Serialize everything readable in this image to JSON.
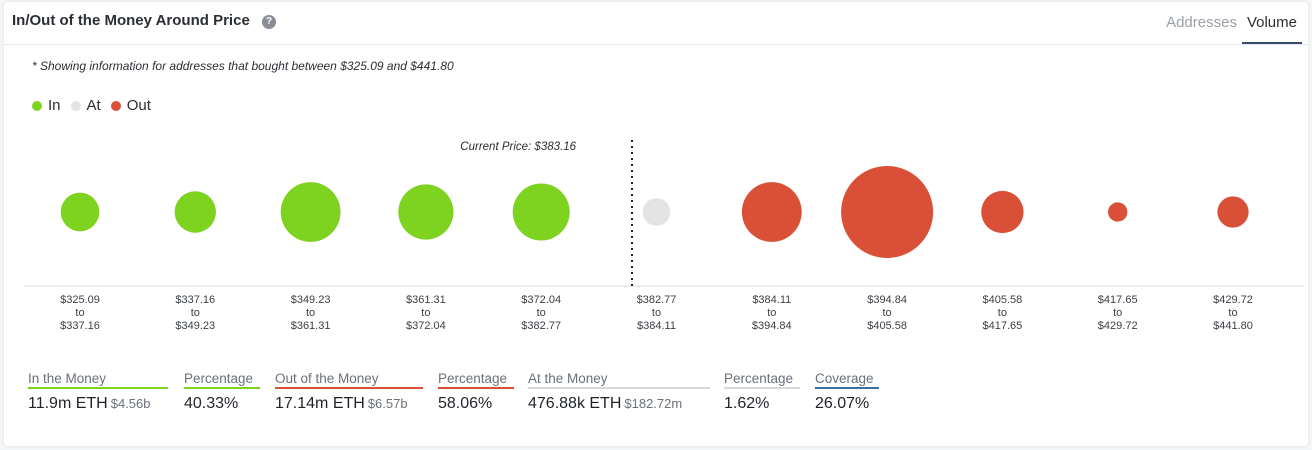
{
  "header": {
    "title": "In/Out of the Money Around Price",
    "help_icon": "question-circle-icon",
    "tabs": [
      {
        "label": "Addresses",
        "active": false
      },
      {
        "label": "Volume",
        "active": true
      }
    ]
  },
  "note": "* Showing information for addresses that bought between $325.09 and $441.80",
  "legend": [
    {
      "label": "In",
      "color": "#7ed321"
    },
    {
      "label": "At",
      "color": "#e3e3e3"
    },
    {
      "label": "Out",
      "color": "#d94f38"
    }
  ],
  "chart_data": {
    "type": "scatter",
    "current_price_label": "Current Price: $383.16",
    "current_price": 383.16,
    "categories": [
      {
        "from": "$325.09",
        "to": "$337.16",
        "status": "in",
        "size": 0.42
      },
      {
        "from": "$337.16",
        "to": "$349.23",
        "status": "in",
        "size": 0.45
      },
      {
        "from": "$349.23",
        "to": "$361.31",
        "status": "in",
        "size": 0.65
      },
      {
        "from": "$361.31",
        "to": "$372.04",
        "status": "in",
        "size": 0.6
      },
      {
        "from": "$372.04",
        "to": "$382.77",
        "status": "in",
        "size": 0.62
      },
      {
        "from": "$382.77",
        "to": "$384.11",
        "status": "at",
        "size": 0.3
      },
      {
        "from": "$384.11",
        "to": "$394.84",
        "status": "out",
        "size": 0.65
      },
      {
        "from": "$394.84",
        "to": "$405.58",
        "status": "out",
        "size": 1.0
      },
      {
        "from": "$405.58",
        "to": "$417.65",
        "status": "out",
        "size": 0.46
      },
      {
        "from": "$417.65",
        "to": "$429.72",
        "status": "out",
        "size": 0.21
      },
      {
        "from": "$429.72",
        "to": "$441.80",
        "status": "out",
        "size": 0.34
      }
    ],
    "to_word": "to",
    "colors": {
      "in": "#7ed321",
      "at": "#e3e3e3",
      "out": "#d94f38"
    }
  },
  "stats": [
    {
      "label": "In the Money",
      "value": "11.9m ETH",
      "sub": "$4.56b",
      "color": "#7ed321"
    },
    {
      "label": "Percentage",
      "value": "40.33%",
      "sub": "",
      "color": "#7ed321"
    },
    {
      "label": "Out of the Money",
      "value": "17.14m ETH",
      "sub": "$6.57b",
      "color": "#d94f38"
    },
    {
      "label": "Percentage",
      "value": "58.06%",
      "sub": "",
      "color": "#d94f38"
    },
    {
      "label": "At the Money",
      "value": "476.88k ETH",
      "sub": "$182.72m",
      "color": "#d9d9d9"
    },
    {
      "label": "Percentage",
      "value": "1.62%",
      "sub": "",
      "color": "#d9d9d9"
    },
    {
      "label": "Coverage",
      "value": "26.07%",
      "sub": "",
      "color": "#3a6ea5"
    }
  ]
}
